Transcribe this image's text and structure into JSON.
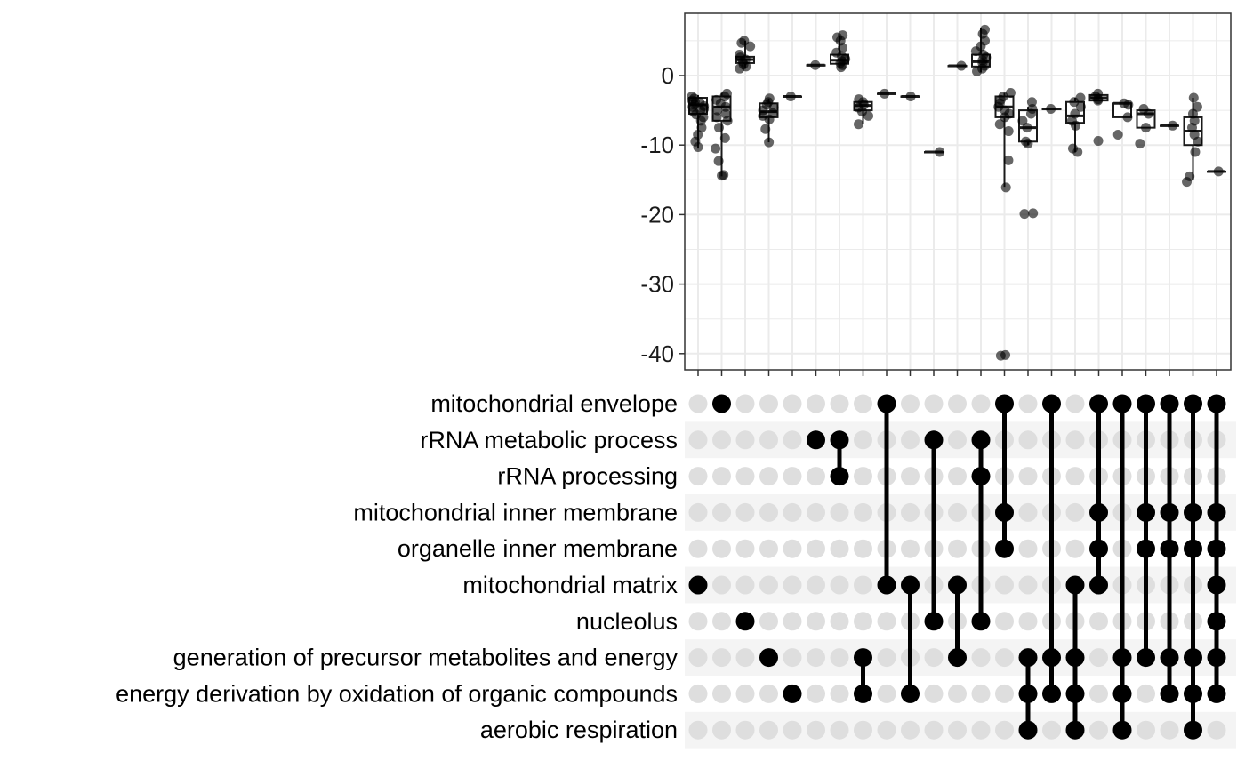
{
  "chart_data": {
    "type": "upset",
    "title": "",
    "ylabel": "",
    "xlabel": "",
    "ylim": [
      -42,
      9
    ],
    "yticks": [
      0,
      -10,
      -20,
      -30,
      -40
    ],
    "grid": true,
    "sets": [
      "mitochondrial envelope",
      "rRNA metabolic process",
      "rRNA processing",
      "mitochondrial inner membrane",
      "organelle inner membrane",
      "mitochondrial matrix",
      "nucleolus",
      "generation of precursor metabolites and energy",
      "energy derivation by oxidation of organic compounds",
      "aerobic respiration"
    ],
    "intersections": [
      {
        "sets": [
          5
        ],
        "box": {
          "min": -10.5,
          "q1": -5.5,
          "median": -4.2,
          "q3": -3.2,
          "max": -2.8
        },
        "points": [
          -3.0,
          -3.3,
          -3.6,
          -3.9,
          -4.2,
          -4.5,
          -4.8,
          -5.2,
          -5.6,
          -6.0,
          -6.5,
          -7.5,
          -8.5,
          -9.5,
          -10.3,
          -3.8,
          -4.4,
          -5.0
        ]
      },
      {
        "sets": [
          0
        ],
        "box": {
          "min": -14.5,
          "q1": -6.5,
          "median": -4.5,
          "q3": -3.0,
          "max": -2.5
        },
        "points": [
          -2.6,
          -3.0,
          -3.5,
          -4.0,
          -4.5,
          -5.0,
          -5.5,
          -6.0,
          -6.5,
          -7.5,
          -9.0,
          -10.5,
          -12.3,
          -14.3,
          -14.4
        ]
      },
      {
        "sets": [
          6
        ],
        "box": {
          "min": 1.0,
          "q1": 1.8,
          "median": 2.3,
          "q3": 2.7,
          "max": 5.0
        },
        "points": [
          1.0,
          1.3,
          1.6,
          2.0,
          2.3,
          2.6,
          3.0,
          4.2,
          4.7,
          5.0
        ]
      },
      {
        "sets": [
          7
        ],
        "box": {
          "min": -9.6,
          "q1": -6.0,
          "median": -5.2,
          "q3": -4.0,
          "max": -3.3
        },
        "points": [
          -3.3,
          -3.8,
          -4.2,
          -4.6,
          -5.0,
          -5.4,
          -5.8,
          -6.3,
          -7.7,
          -9.6
        ]
      },
      {
        "sets": [
          8
        ],
        "box": {
          "min": -3.0,
          "q1": -3.0,
          "median": -3.0,
          "q3": -3.0,
          "max": -3.0
        },
        "points": [
          -3.0
        ]
      },
      {
        "sets": [
          1
        ],
        "box": {
          "min": 1.5,
          "q1": 1.5,
          "median": 1.5,
          "q3": 1.5,
          "max": 1.5
        },
        "points": [
          1.5
        ]
      },
      {
        "sets": [
          1,
          2
        ],
        "box": {
          "min": 1.2,
          "q1": 1.7,
          "median": 2.2,
          "q3": 3.0,
          "max": 5.8
        },
        "points": [
          1.2,
          1.5,
          1.8,
          2.1,
          2.4,
          2.8,
          3.3,
          4.0,
          5.0,
          5.5,
          5.8
        ]
      },
      {
        "sets": [
          7,
          8
        ],
        "box": {
          "min": -7.0,
          "q1": -5.0,
          "median": -4.3,
          "q3": -3.8,
          "max": -3.4
        },
        "points": [
          -3.4,
          -3.8,
          -4.2,
          -4.6,
          -5.2,
          -5.8,
          -7.0
        ]
      },
      {
        "sets": [
          0,
          5
        ],
        "box": {
          "min": -2.6,
          "q1": -2.6,
          "median": -2.6,
          "q3": -2.6,
          "max": -2.6
        },
        "points": [
          -2.6
        ]
      },
      {
        "sets": [
          5,
          8
        ],
        "box": {
          "min": -3.0,
          "q1": -3.0,
          "median": -3.0,
          "q3": -3.0,
          "max": -3.0
        },
        "points": [
          -3.0
        ]
      },
      {
        "sets": [
          1,
          6
        ],
        "box": {
          "min": -11.0,
          "q1": -11.0,
          "median": -11.0,
          "q3": -11.0,
          "max": -11.0
        },
        "points": [
          -11.0
        ]
      },
      {
        "sets": [
          5,
          7
        ],
        "box": {
          "min": 1.4,
          "q1": 1.4,
          "median": 1.4,
          "q3": 1.4,
          "max": 1.4
        },
        "points": [
          1.4
        ]
      },
      {
        "sets": [
          1,
          2,
          6
        ],
        "box": {
          "min": 0.5,
          "q1": 1.3,
          "median": 2.0,
          "q3": 3.0,
          "max": 6.8
        },
        "points": [
          0.6,
          1.0,
          1.4,
          1.8,
          2.2,
          2.6,
          3.0,
          3.5,
          4.2,
          5.0,
          6.0,
          6.6
        ]
      },
      {
        "sets": [
          0,
          3,
          4
        ],
        "box": {
          "min": -16.0,
          "q1": -6.0,
          "median": -4.5,
          "q3": -3.0,
          "max": -2.5
        },
        "points": [
          -2.5,
          -3.0,
          -3.5,
          -4.0,
          -4.5,
          -5.0,
          -5.5,
          -6.0,
          -7.0,
          -8.0,
          -12.2,
          -16.1,
          -40.2,
          -40.3
        ]
      },
      {
        "sets": [
          7,
          8,
          9
        ],
        "box": {
          "min": -10.0,
          "q1": -9.5,
          "median": -7.5,
          "q3": -5.0,
          "max": -4.5
        },
        "points": [
          -3.8,
          -4.8,
          -5.5,
          -6.5,
          -7.5,
          -9.5,
          -9.8,
          -19.8,
          -19.9
        ]
      },
      {
        "sets": [
          0,
          7,
          8
        ],
        "box": {
          "min": -4.8,
          "q1": -4.8,
          "median": -4.8,
          "q3": -4.8,
          "max": -4.8
        },
        "points": [
          -4.8
        ]
      },
      {
        "sets": [
          5,
          7,
          8,
          9
        ],
        "box": {
          "min": -11.0,
          "q1": -6.8,
          "median": -5.8,
          "q3": -3.8,
          "max": -3.2
        },
        "points": [
          -3.2,
          -3.8,
          -4.5,
          -5.5,
          -6.5,
          -7.2,
          -10.5,
          -11.0
        ]
      },
      {
        "sets": [
          0,
          3,
          4,
          5
        ],
        "box": {
          "min": -3.6,
          "q1": -3.6,
          "median": -3.2,
          "q3": -2.8,
          "max": -2.6
        },
        "points": [
          -2.6,
          -3.0,
          -3.4,
          -3.6,
          -9.4
        ]
      },
      {
        "sets": [
          0,
          7,
          8,
          9
        ],
        "box": {
          "min": -6.0,
          "q1": -6.0,
          "median": -4.0,
          "q3": -4.0,
          "max": -4.0
        },
        "points": [
          -4.0,
          -4.2,
          -6.0,
          -8.5
        ]
      },
      {
        "sets": [
          0,
          3,
          4,
          7
        ],
        "box": {
          "min": -7.5,
          "q1": -7.5,
          "median": -5.5,
          "q3": -5.0,
          "max": -5.0
        },
        "points": [
          -4.8,
          -5.5,
          -7.5,
          -9.8
        ]
      },
      {
        "sets": [
          0,
          3,
          4,
          7,
          8
        ],
        "box": {
          "min": -7.2,
          "q1": -7.2,
          "median": -7.2,
          "q3": -7.2,
          "max": -7.2
        },
        "points": [
          -7.2
        ]
      },
      {
        "sets": [
          0,
          3,
          4,
          7,
          8,
          9
        ],
        "box": {
          "min": -15.0,
          "q1": -10.0,
          "median": -8.0,
          "q3": -6.0,
          "max": -3.2
        },
        "points": [
          -3.2,
          -4.5,
          -5.5,
          -6.5,
          -7.5,
          -8.5,
          -9.5,
          -11.0,
          -14.5,
          -15.3
        ]
      },
      {
        "sets": [
          0,
          3,
          4,
          5,
          6,
          7,
          8
        ],
        "box": {
          "min": -13.8,
          "q1": -13.8,
          "median": -13.8,
          "q3": -13.8,
          "max": -13.8
        },
        "points": [
          -13.8
        ]
      }
    ],
    "colors": {
      "point": "#000000",
      "point_fill": "rgba(0,0,0,0.6)",
      "box_stroke": "#1a1a1a",
      "dot_active": "#000000",
      "dot_inactive": "#dedede",
      "row_stripe": "#f4f4f4",
      "grid": "#ebebeb",
      "panel_border": "#333333"
    }
  }
}
